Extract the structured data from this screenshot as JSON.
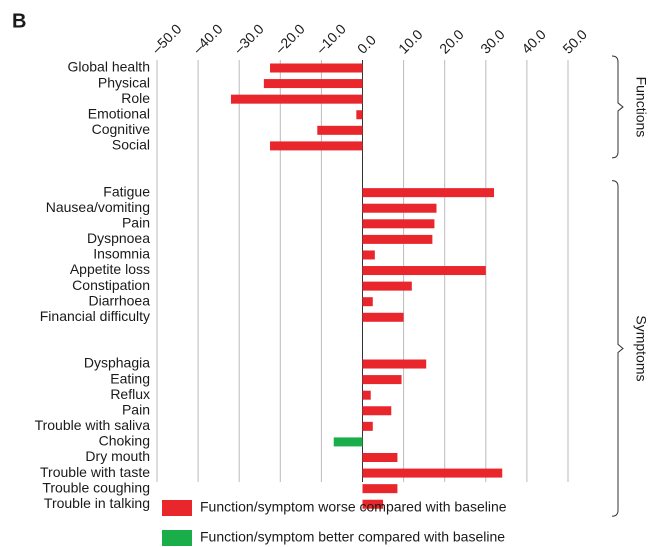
{
  "chart_data": {
    "type": "bar",
    "orientation": "horizontal",
    "panel_label": "B",
    "categories": [
      "Global health",
      "Physical",
      "Role",
      "Emotional",
      "Cognitive",
      "Social",
      null,
      null,
      "Fatigue",
      "Nausea/vomiting",
      "Pain",
      "Dyspnoea",
      "Insomnia",
      "Appetite loss",
      "Constipation",
      "Diarrhoea",
      "Financial difficulty",
      null,
      null,
      "Dysphagia",
      "Eating",
      "Reflux",
      "Pain",
      "Trouble with saliva",
      "Choking",
      "Dry mouth",
      "Trouble with taste",
      "Trouble coughing",
      "Trouble in talking"
    ],
    "series": [
      {
        "name": "Function/symptom worse compared with baseline",
        "color": "#e8262b",
        "values": [
          -22.5,
          -24,
          -32,
          -1.5,
          -11,
          -22.5,
          null,
          null,
          32,
          18,
          17.5,
          17,
          3,
          30,
          12,
          2.5,
          10,
          null,
          null,
          15.5,
          9.5,
          2,
          7,
          2.5,
          null,
          8.5,
          34,
          8.5,
          5
        ]
      },
      {
        "name": "Function/symptom better compared with baseline",
        "color": "#1aae4b",
        "values": [
          null,
          null,
          null,
          null,
          null,
          null,
          null,
          null,
          null,
          null,
          null,
          null,
          null,
          null,
          null,
          null,
          null,
          null,
          null,
          null,
          null,
          null,
          null,
          null,
          -7,
          null,
          null,
          null,
          null
        ]
      }
    ],
    "xlim": [
      -50,
      50
    ],
    "xticks": [
      {
        "value": -50,
        "label": "–50.0"
      },
      {
        "value": -40,
        "label": "–40.0"
      },
      {
        "value": -30,
        "label": "–30.0"
      },
      {
        "value": -20,
        "label": "–20.0"
      },
      {
        "value": -10,
        "label": "–10.0"
      },
      {
        "value": 0,
        "label": "0.0"
      },
      {
        "value": 10,
        "label": "10.0"
      },
      {
        "value": 20,
        "label": "20.0"
      },
      {
        "value": 30,
        "label": "30.0"
      },
      {
        "value": 40,
        "label": "40.0"
      },
      {
        "value": 50,
        "label": "50.0"
      }
    ],
    "grid": true,
    "annotations": [
      "Functions",
      "Symptoms"
    ]
  }
}
